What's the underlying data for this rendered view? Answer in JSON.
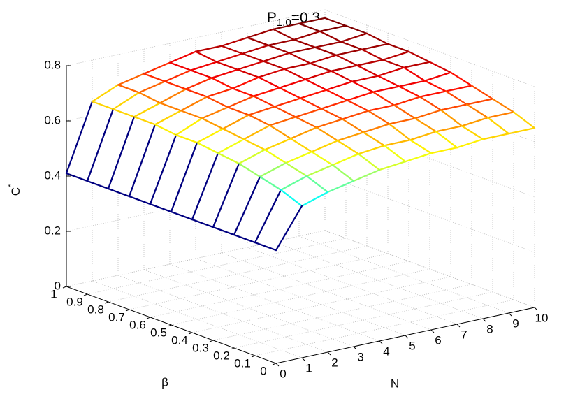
{
  "chart_data": {
    "type": "surface",
    "title": {
      "base": "P",
      "subscript": "1,0",
      "rest": "=0.3"
    },
    "xlabel": "N",
    "ylabel": "β",
    "zlabel": {
      "base": "C",
      "superscript": "*"
    },
    "x": [
      0,
      1,
      2,
      3,
      4,
      5,
      6,
      7,
      8,
      9,
      10
    ],
    "y": [
      0,
      0.1,
      0.2,
      0.3,
      0.4,
      0.5,
      0.6,
      0.7,
      0.8,
      0.9,
      1
    ],
    "z": [
      [
        0.41,
        0.55,
        0.58,
        0.6,
        0.62,
        0.63,
        0.64,
        0.64,
        0.65,
        0.65,
        0.65
      ],
      [
        0.41,
        0.58,
        0.61,
        0.63,
        0.65,
        0.66,
        0.66,
        0.67,
        0.67,
        0.68,
        0.68
      ],
      [
        0.41,
        0.6,
        0.63,
        0.65,
        0.67,
        0.68,
        0.69,
        0.69,
        0.7,
        0.7,
        0.7
      ],
      [
        0.41,
        0.62,
        0.65,
        0.67,
        0.69,
        0.7,
        0.71,
        0.71,
        0.72,
        0.72,
        0.72
      ],
      [
        0.41,
        0.63,
        0.66,
        0.69,
        0.7,
        0.71,
        0.72,
        0.73,
        0.73,
        0.73,
        0.74
      ],
      [
        0.41,
        0.64,
        0.67,
        0.7,
        0.71,
        0.72,
        0.73,
        0.74,
        0.74,
        0.75,
        0.75
      ],
      [
        0.41,
        0.64,
        0.68,
        0.7,
        0.72,
        0.73,
        0.74,
        0.75,
        0.75,
        0.75,
        0.76
      ],
      [
        0.41,
        0.65,
        0.68,
        0.71,
        0.72,
        0.74,
        0.75,
        0.75,
        0.76,
        0.76,
        0.76
      ],
      [
        0.41,
        0.65,
        0.68,
        0.71,
        0.73,
        0.74,
        0.75,
        0.76,
        0.76,
        0.76,
        0.77
      ],
      [
        0.41,
        0.65,
        0.69,
        0.71,
        0.73,
        0.74,
        0.75,
        0.76,
        0.76,
        0.77,
        0.77
      ],
      [
        0.41,
        0.65,
        0.69,
        0.71,
        0.73,
        0.75,
        0.75,
        0.76,
        0.77,
        0.77,
        0.77
      ]
    ],
    "xlim": [
      0,
      10
    ],
    "xticks": [
      0,
      1,
      2,
      3,
      4,
      5,
      6,
      7,
      8,
      9,
      10
    ],
    "ylim": [
      0,
      1
    ],
    "yticks": [
      0,
      0.1,
      0.2,
      0.3,
      0.4,
      0.5,
      0.6,
      0.7,
      0.8,
      0.9,
      1
    ],
    "zlim": [
      0,
      0.8
    ],
    "zticks": [
      0,
      0.2,
      0.4,
      0.6,
      0.8
    ],
    "colormap": "jet",
    "grid": true
  }
}
